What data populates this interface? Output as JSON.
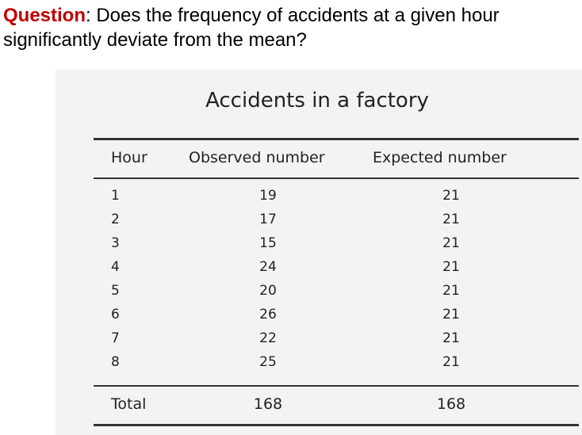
{
  "question": {
    "label": "Question",
    "text": ": Does the frequency of accidents at a given hour significantly deviate from the mean?"
  },
  "table": {
    "title": "Accidents in a factory",
    "headers": {
      "hour": "Hour",
      "observed": "Observed number",
      "expected": "Expected number"
    },
    "rows": [
      {
        "hour": "1",
        "observed": "19",
        "expected": "21"
      },
      {
        "hour": "2",
        "observed": "17",
        "expected": "21"
      },
      {
        "hour": "3",
        "observed": "15",
        "expected": "21"
      },
      {
        "hour": "4",
        "observed": "24",
        "expected": "21"
      },
      {
        "hour": "5",
        "observed": "20",
        "expected": "21"
      },
      {
        "hour": "6",
        "observed": "26",
        "expected": "21"
      },
      {
        "hour": "7",
        "observed": "22",
        "expected": "21"
      },
      {
        "hour": "8",
        "observed": "25",
        "expected": "21"
      }
    ],
    "total": {
      "label": "Total",
      "observed": "168",
      "expected": "168"
    }
  },
  "colors": {
    "question_label": "#c00000",
    "panel_background": "#f3f3f3"
  }
}
